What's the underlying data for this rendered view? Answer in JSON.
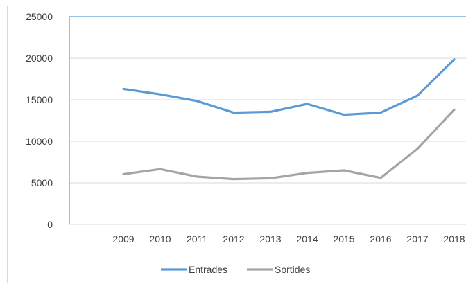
{
  "chart_data": {
    "type": "line",
    "title": "",
    "xlabel": "",
    "ylabel": "",
    "categories": [
      "2009",
      "2010",
      "2011",
      "2012",
      "2013",
      "2014",
      "2015",
      "2016",
      "2017",
      "2018"
    ],
    "series": [
      {
        "name": "Entrades",
        "color": "#5b9bd5",
        "values": [
          16300,
          15650,
          14850,
          13450,
          13550,
          14500,
          13200,
          13450,
          15500,
          19850
        ]
      },
      {
        "name": "Sortides",
        "color": "#a5a5a5",
        "values": [
          6050,
          6650,
          5750,
          5450,
          5550,
          6200,
          6500,
          5600,
          9100,
          13800
        ]
      }
    ],
    "ylim": [
      0,
      25000
    ],
    "yticks": [
      "0",
      "5000",
      "10000",
      "15000",
      "20000",
      "25000"
    ],
    "grid": true,
    "legend": "bottom"
  }
}
